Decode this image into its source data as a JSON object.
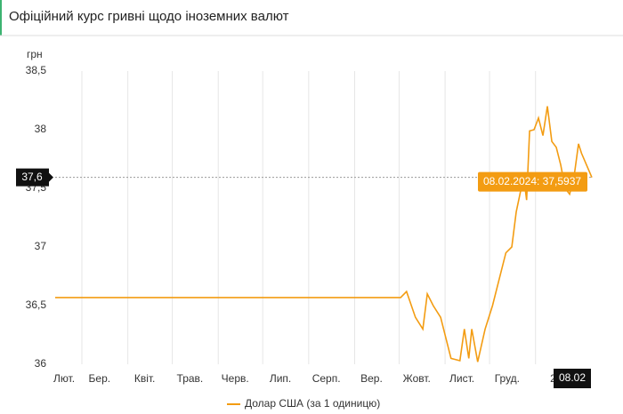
{
  "header": {
    "title": "Офіційний курс гривні щодо іноземних валют"
  },
  "chart_data": {
    "type": "line",
    "y_axis_title": "грн",
    "x": [
      "2023-02-11",
      "2023-10-02",
      "2023-10-06",
      "2023-10-12",
      "2023-10-17",
      "2023-10-20",
      "2023-10-24",
      "2023-10-29",
      "2023-11-05",
      "2023-11-11",
      "2023-11-14",
      "2023-11-17",
      "2023-11-19",
      "2023-11-23",
      "2023-11-28",
      "2023-12-03",
      "2023-12-07",
      "2023-12-12",
      "2023-12-16",
      "2023-12-19",
      "2023-12-24",
      "2023-12-26",
      "2023-12-28",
      "2023-12-31",
      "2024-01-03",
      "2024-01-06",
      "2024-01-09",
      "2024-01-12",
      "2024-01-15",
      "2024-01-18",
      "2024-01-21",
      "2024-01-24",
      "2024-01-27",
      "2024-01-30",
      "2024-02-01",
      "2024-02-08"
    ],
    "series": [
      {
        "name": "Долар США (за 1 одиницю)",
        "color": "#f39c12",
        "values": [
          36.5686,
          36.5686,
          36.62,
          36.4,
          36.3,
          36.6,
          36.5,
          36.4,
          36.05,
          36.03,
          36.3,
          36.05,
          36.3,
          36.02,
          36.3,
          36.5,
          36.7,
          36.95,
          37.0,
          37.3,
          37.6,
          37.4,
          37.99,
          38.0,
          38.1,
          37.95,
          38.2,
          37.9,
          37.85,
          37.7,
          37.5,
          37.45,
          37.6,
          37.88,
          37.8,
          37.5937
        ]
      }
    ],
    "xlim": [
      "2023-02-11",
      "2024-02-08"
    ],
    "xticks": [
      {
        "value": "2023-02-01",
        "label": "Лют."
      },
      {
        "value": "2023-03-01",
        "label": "Бер."
      },
      {
        "value": "2023-04-01",
        "label": "Квіт."
      },
      {
        "value": "2023-05-01",
        "label": "Трав."
      },
      {
        "value": "2023-06-01",
        "label": "Черв."
      },
      {
        "value": "2023-07-01",
        "label": "Лип."
      },
      {
        "value": "2023-08-01",
        "label": "Серп."
      },
      {
        "value": "2023-09-01",
        "label": "Вер."
      },
      {
        "value": "2023-10-01",
        "label": "Жовт."
      },
      {
        "value": "2023-11-01",
        "label": "Лист."
      },
      {
        "value": "2023-12-01",
        "label": "Груд."
      },
      {
        "value": "2024-01-01",
        "label": "2"
      }
    ],
    "ylim": [
      36,
      38.5
    ],
    "yticks": [
      36,
      {
        "value": 36.5,
        "label": "36,5"
      },
      37,
      {
        "value": 37.5,
        "label": "37,5"
      },
      38,
      {
        "value": 38.5,
        "label": "38,5"
      }
    ],
    "grid": "x",
    "crosshair": {
      "value": 37.5937,
      "value_label": "37,6",
      "date_label": "08.02",
      "tooltip": "08.02.2024: 37,5937"
    }
  }
}
